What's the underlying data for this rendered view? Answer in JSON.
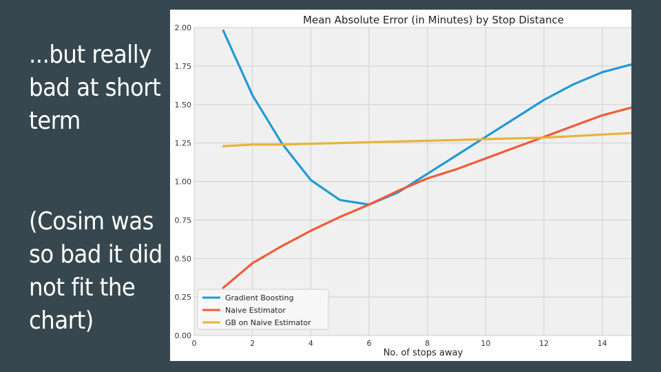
{
  "slide": {
    "headline_lines": [
      "...but really",
      "bad at short",
      "term"
    ],
    "note_lines": [
      "(Cosim was",
      "so bad it did",
      "not fit the",
      "chart)"
    ],
    "background_color": "#37474f"
  },
  "chart_data": {
    "type": "line",
    "title": "Mean Absolute Error (in Minutes) by Stop Distance",
    "xlabel": "No. of stops away",
    "ylabel": "",
    "xlim": [
      0,
      15
    ],
    "ylim": [
      0,
      2.0
    ],
    "x_ticks": [
      0,
      2,
      4,
      6,
      8,
      10,
      12,
      14
    ],
    "x_tick_labels": [
      "0",
      "2",
      "4",
      "6",
      "8",
      "10",
      "12",
      "14"
    ],
    "y_ticks": [
      0,
      0.25,
      0.5,
      0.75,
      1.0,
      1.25,
      1.5,
      1.75,
      2.0
    ],
    "y_tick_labels": [
      "0.00",
      "0.25",
      "0.50",
      "0.75",
      "1.00",
      "1.25",
      "1.50",
      "1.75",
      "2.00"
    ],
    "grid": true,
    "legend_position": "bottom-left",
    "x": [
      1,
      2,
      3,
      4,
      5,
      6,
      7,
      8,
      9,
      10,
      11,
      12,
      13,
      14,
      15
    ],
    "series": [
      {
        "name": "Gradient Boosting",
        "color": "#1e9ad6",
        "values": [
          1.98,
          1.56,
          1.25,
          1.01,
          0.88,
          0.85,
          0.93,
          1.05,
          1.17,
          1.29,
          1.41,
          1.53,
          1.63,
          1.71,
          1.76
        ]
      },
      {
        "name": "Naive Estimator",
        "color": "#f25a38",
        "values": [
          0.31,
          0.47,
          0.58,
          0.68,
          0.77,
          0.85,
          0.94,
          1.02,
          1.08,
          1.15,
          1.22,
          1.29,
          1.36,
          1.43,
          1.48
        ]
      },
      {
        "name": "GB on Naive Estimator",
        "color": "#e8b33a",
        "values": [
          1.23,
          1.24,
          1.24,
          1.245,
          1.25,
          1.255,
          1.26,
          1.265,
          1.27,
          1.275,
          1.28,
          1.285,
          1.295,
          1.305,
          1.315
        ]
      }
    ]
  }
}
